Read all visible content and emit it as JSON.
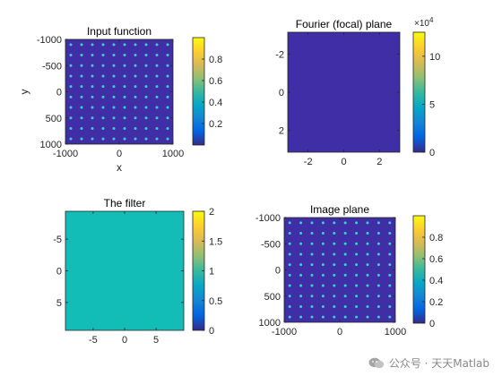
{
  "chart_data": [
    {
      "type": "heatmap",
      "title": "Input function",
      "xlabel": "x",
      "ylabel": "y",
      "xlim": [
        -1000,
        1000
      ],
      "ylim": [
        -1000,
        1000
      ],
      "y_reversed": true,
      "xticks": [
        "-1000",
        "0",
        "1000"
      ],
      "yticks": [
        "-1000",
        "-500",
        "0",
        "500",
        "1000"
      ],
      "image": "10 x 10 lattice of point sources (value ≈ 0.8–1) on a zero background",
      "colormap": "parula",
      "colorbar": {
        "ticks": [
          "0.2",
          "0.4",
          "0.6",
          "0.8"
        ],
        "range": [
          0,
          1
        ]
      }
    },
    {
      "type": "heatmap",
      "title": "Fourier (focal) plane",
      "xlabel": "",
      "ylabel": "",
      "xlim": [
        -3.14,
        3.14
      ],
      "ylim": [
        -3.14,
        3.14
      ],
      "y_reversed": true,
      "xticks": [
        "-2",
        "0",
        "2"
      ],
      "yticks": [
        "-2",
        "0",
        "2"
      ],
      "image": "uniform (near zero everywhere)",
      "colormap": "parula",
      "colorbar": {
        "ticks": [
          "0",
          "5",
          "10"
        ],
        "range": [
          0,
          12.5
        ],
        "exponent_label": "×10",
        "exponent": "4"
      }
    },
    {
      "type": "heatmap",
      "title": "The filter",
      "xlabel": "",
      "ylabel": "",
      "xlim": [
        -9.4,
        9.4
      ],
      "ylim": [
        -9.4,
        9.4
      ],
      "y_reversed": true,
      "xticks": [
        "-5",
        "0",
        "5"
      ],
      "yticks": [
        "-5",
        "0",
        "5"
      ],
      "image": "uniform value 1",
      "colormap": "parula",
      "colorbar": {
        "ticks": [
          "0",
          "0.5",
          "1",
          "1.5",
          "2"
        ],
        "range": [
          0,
          2
        ]
      }
    },
    {
      "type": "heatmap",
      "title": "Image plane",
      "xlabel": "",
      "ylabel": "",
      "xlim": [
        -1000,
        1000
      ],
      "ylim": [
        -1000,
        1000
      ],
      "y_reversed": true,
      "xticks": [
        "-1000",
        "0",
        "1000"
      ],
      "yticks": [
        "-1000",
        "-500",
        "0",
        "500",
        "1000"
      ],
      "image": "10 x 10 lattice of point sources (value ≈ 0.8–1) on a zero background",
      "colormap": "parula",
      "colorbar": {
        "ticks": [
          "0",
          "0.2",
          "0.4",
          "0.6",
          "0.8"
        ],
        "range": [
          0,
          1
        ]
      }
    }
  ],
  "colors": {
    "background_low": "#3f2ea6",
    "filter_fill": "#13bdb7",
    "dot": "#3ad0d0",
    "parula": [
      "#352a87",
      "#0363e1",
      "#1485d4",
      "#06a7c6",
      "#38b99e",
      "#92bf73",
      "#d9ba56",
      "#fcce2e",
      "#f9fb0e"
    ]
  },
  "watermark": {
    "icon": "wechat-icon",
    "text": "公众号 · 天天Matlab"
  }
}
